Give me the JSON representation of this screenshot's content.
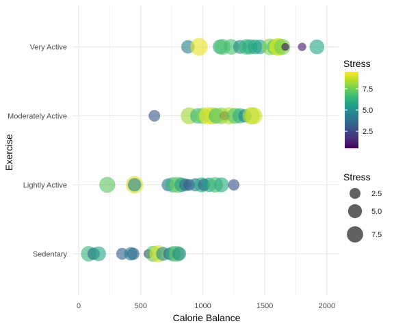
{
  "chart_data": {
    "type": "scatter",
    "title": "",
    "xlabel": "Calorie Balance",
    "ylabel": "Exercise",
    "xlim": [
      -50,
      2100
    ],
    "x_ticks": [
      0,
      500,
      1000,
      1500,
      2000
    ],
    "x_tick_labels": [
      "0",
      "500",
      "1000",
      "1500",
      "2000"
    ],
    "categories": [
      "Sedentary",
      "Lightly Active",
      "Moderately Active",
      "Very Active"
    ],
    "grid": true,
    "legend_position": "right",
    "color_legend": {
      "title": "Stress",
      "palette": "viridis",
      "range": [
        0.5,
        9.5
      ],
      "ticks": [
        2.5,
        5.0,
        7.5
      ],
      "tick_labels": [
        "2.5",
        "5.0",
        "7.5"
      ],
      "colors": [
        "#440154",
        "#482878",
        "#3e4989",
        "#31688e",
        "#26828e",
        "#1f9e89",
        "#35b779",
        "#6ece58",
        "#b5de2b",
        "#fde725"
      ]
    },
    "size_legend": {
      "title": "Stress",
      "values": [
        2.5,
        5.0,
        7.5
      ],
      "labels": [
        "2.5",
        "5.0",
        "7.5"
      ]
    },
    "points": [
      {
        "category": "Very Active",
        "x": 880,
        "stress": 4.5
      },
      {
        "category": "Very Active",
        "x": 970,
        "stress": 9.2
      },
      {
        "category": "Very Active",
        "x": 1140,
        "stress": 6.0
      },
      {
        "category": "Very Active",
        "x": 1160,
        "stress": 7.0
      },
      {
        "category": "Very Active",
        "x": 1230,
        "stress": 6.8
      },
      {
        "category": "Very Active",
        "x": 1300,
        "stress": 4.8
      },
      {
        "category": "Very Active",
        "x": 1350,
        "stress": 6.5
      },
      {
        "category": "Very Active",
        "x": 1380,
        "stress": 6.2
      },
      {
        "category": "Very Active",
        "x": 1420,
        "stress": 5.8
      },
      {
        "category": "Very Active",
        "x": 1460,
        "stress": 5.5
      },
      {
        "category": "Very Active",
        "x": 1540,
        "stress": 7.8
      },
      {
        "category": "Very Active",
        "x": 1580,
        "stress": 6.8
      },
      {
        "category": "Very Active",
        "x": 1600,
        "stress": 8.6
      },
      {
        "category": "Very Active",
        "x": 1610,
        "stress": 9.0
      },
      {
        "category": "Very Active",
        "x": 1640,
        "stress": 7.5
      },
      {
        "category": "Very Active",
        "x": 1665,
        "stress": 1.0
      },
      {
        "category": "Very Active",
        "x": 1800,
        "stress": 1.2
      },
      {
        "category": "Very Active",
        "x": 1920,
        "stress": 5.8
      },
      {
        "category": "Moderately Active",
        "x": 610,
        "stress": 3.0
      },
      {
        "category": "Moderately Active",
        "x": 890,
        "stress": 8.2
      },
      {
        "category": "Moderately Active",
        "x": 960,
        "stress": 6.5
      },
      {
        "category": "Moderately Active",
        "x": 1000,
        "stress": 7.5
      },
      {
        "category": "Moderately Active",
        "x": 1040,
        "stress": 9.3
      },
      {
        "category": "Moderately Active",
        "x": 1080,
        "stress": 8.8
      },
      {
        "category": "Moderately Active",
        "x": 1110,
        "stress": 6.8
      },
      {
        "category": "Moderately Active",
        "x": 1150,
        "stress": 7.8
      },
      {
        "category": "Moderately Active",
        "x": 1175,
        "stress": 1.5
      },
      {
        "category": "Moderately Active",
        "x": 1210,
        "stress": 8.5
      },
      {
        "category": "Moderately Active",
        "x": 1260,
        "stress": 7.0
      },
      {
        "category": "Moderately Active",
        "x": 1300,
        "stress": 6.2
      },
      {
        "category": "Moderately Active",
        "x": 1340,
        "stress": 4.5
      },
      {
        "category": "Moderately Active",
        "x": 1390,
        "stress": 8.5
      },
      {
        "category": "Moderately Active",
        "x": 1410,
        "stress": 8.8
      },
      {
        "category": "Lightly Active",
        "x": 230,
        "stress": 7.2
      },
      {
        "category": "Lightly Active",
        "x": 450,
        "stress": 9.0
      },
      {
        "category": "Lightly Active",
        "x": 450,
        "stress": 4.5
      },
      {
        "category": "Lightly Active",
        "x": 720,
        "stress": 4.0
      },
      {
        "category": "Lightly Active",
        "x": 760,
        "stress": 6.5
      },
      {
        "category": "Lightly Active",
        "x": 800,
        "stress": 7.5
      },
      {
        "category": "Lightly Active",
        "x": 830,
        "stress": 5.5
      },
      {
        "category": "Lightly Active",
        "x": 860,
        "stress": 3.8
      },
      {
        "category": "Lightly Active",
        "x": 890,
        "stress": 3.0
      },
      {
        "category": "Lightly Active",
        "x": 940,
        "stress": 4.2
      },
      {
        "category": "Lightly Active",
        "x": 990,
        "stress": 6.0
      },
      {
        "category": "Lightly Active",
        "x": 1010,
        "stress": 3.5
      },
      {
        "category": "Lightly Active",
        "x": 1050,
        "stress": 5.5
      },
      {
        "category": "Lightly Active",
        "x": 1100,
        "stress": 6.8
      },
      {
        "category": "Lightly Active",
        "x": 1150,
        "stress": 6.0
      },
      {
        "category": "Lightly Active",
        "x": 1250,
        "stress": 2.8
      },
      {
        "category": "Sedentary",
        "x": 80,
        "stress": 6.5
      },
      {
        "category": "Sedentary",
        "x": 120,
        "stress": 3.5
      },
      {
        "category": "Sedentary",
        "x": 160,
        "stress": 5.8
      },
      {
        "category": "Sedentary",
        "x": 350,
        "stress": 3.2
      },
      {
        "category": "Sedentary",
        "x": 420,
        "stress": 4.5
      },
      {
        "category": "Sedentary",
        "x": 440,
        "stress": 3.5
      },
      {
        "category": "Sedentary",
        "x": 560,
        "stress": 1.5
      },
      {
        "category": "Sedentary",
        "x": 600,
        "stress": 7.0
      },
      {
        "category": "Sedentary",
        "x": 640,
        "stress": 9.0
      },
      {
        "category": "Sedentary",
        "x": 680,
        "stress": 5.0
      },
      {
        "category": "Sedentary",
        "x": 730,
        "stress": 3.2
      },
      {
        "category": "Sedentary",
        "x": 760,
        "stress": 6.2
      },
      {
        "category": "Sedentary",
        "x": 790,
        "stress": 7.2
      },
      {
        "category": "Sedentary",
        "x": 810,
        "stress": 4.8
      }
    ]
  }
}
